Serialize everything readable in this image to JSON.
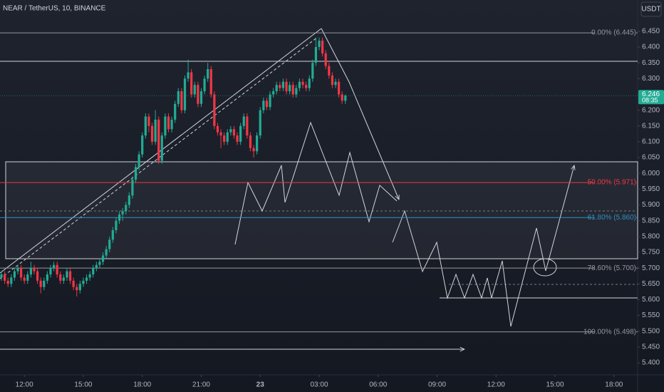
{
  "chart_data": {
    "type": "candlestick",
    "title": "NEAR / TetherUS, 10, BINANCE",
    "currency_button": "USDT",
    "up_color": "#22ab94",
    "down_color": "#f23645",
    "xlim": [
      0,
      194
    ],
    "xticks": [
      {
        "value": 7,
        "label": "12:00"
      },
      {
        "value": 25,
        "label": "15:00"
      },
      {
        "value": 43,
        "label": "18:00"
      },
      {
        "value": 61,
        "label": "21:00"
      },
      {
        "value": 79,
        "label": "23"
      },
      {
        "value": 97,
        "label": "03:00"
      },
      {
        "value": 115,
        "label": "06:00"
      },
      {
        "value": 133,
        "label": "09:00"
      },
      {
        "value": 151,
        "label": "12:00"
      },
      {
        "value": 169,
        "label": "15:00"
      },
      {
        "value": 187,
        "label": "18:00"
      }
    ],
    "ylim": [
      5.364,
      6.549
    ],
    "yticks": [
      {
        "value": 6.45,
        "label": "6.450"
      },
      {
        "value": 6.4,
        "label": "6.400"
      },
      {
        "value": 6.35,
        "label": "6.350"
      },
      {
        "value": 6.3,
        "label": "6.300"
      },
      {
        "value": 6.2,
        "label": "6.200"
      },
      {
        "value": 6.15,
        "label": "6.150"
      },
      {
        "value": 6.1,
        "label": "6.100"
      },
      {
        "value": 6.05,
        "label": "6.050"
      },
      {
        "value": 6.0,
        "label": "6.000"
      },
      {
        "value": 5.95,
        "label": "5.950"
      },
      {
        "value": 5.9,
        "label": "5.900"
      },
      {
        "value": 5.85,
        "label": "5.850"
      },
      {
        "value": 5.8,
        "label": "5.800"
      },
      {
        "value": 5.75,
        "label": "5.750"
      },
      {
        "value": 5.7,
        "label": "5.700"
      },
      {
        "value": 5.65,
        "label": "5.650"
      },
      {
        "value": 5.6,
        "label": "5.600"
      },
      {
        "value": 5.55,
        "label": "5.550"
      },
      {
        "value": 5.5,
        "label": "5.500"
      },
      {
        "value": 5.45,
        "label": "5.450"
      },
      {
        "value": 5.4,
        "label": "5.400"
      }
    ],
    "last_price": {
      "value": 6.246,
      "label": "6.246",
      "countdown": "08:35",
      "color": "#22ab94"
    },
    "fib_levels": [
      {
        "label": "0.00% (6.445)",
        "value": 6.445,
        "color": "#9598a1"
      },
      {
        "label": "50.00% (5.971)",
        "value": 5.971,
        "color": "#f23645"
      },
      {
        "label": "61.80% (5.860)",
        "value": 5.86,
        "color": "#2f8fc4"
      },
      {
        "label": "78.60% (5.700)",
        "value": 5.7,
        "color": "#9598a1"
      },
      {
        "label": "100.00% (5.498)",
        "value": 5.498,
        "color": "#9598a1"
      }
    ],
    "ohlc": [
      [
        5.67,
        5.69,
        5.66,
        5.68
      ],
      [
        5.68,
        5.69,
        5.65,
        5.66
      ],
      [
        5.66,
        5.67,
        5.64,
        5.65
      ],
      [
        5.65,
        5.68,
        5.64,
        5.67
      ],
      [
        5.67,
        5.7,
        5.66,
        5.69
      ],
      [
        5.69,
        5.71,
        5.68,
        5.7
      ],
      [
        5.7,
        5.71,
        5.66,
        5.67
      ],
      [
        5.67,
        5.68,
        5.65,
        5.66
      ],
      [
        5.66,
        5.69,
        5.65,
        5.68
      ],
      [
        5.68,
        5.72,
        5.67,
        5.7
      ],
      [
        5.7,
        5.71,
        5.68,
        5.69
      ],
      [
        5.69,
        5.7,
        5.65,
        5.66
      ],
      [
        5.66,
        5.67,
        5.62,
        5.64
      ],
      [
        5.64,
        5.67,
        5.63,
        5.66
      ],
      [
        5.66,
        5.69,
        5.65,
        5.68
      ],
      [
        5.68,
        5.71,
        5.67,
        5.7
      ],
      [
        5.7,
        5.72,
        5.69,
        5.71
      ],
      [
        5.71,
        5.72,
        5.67,
        5.68
      ],
      [
        5.68,
        5.69,
        5.65,
        5.66
      ],
      [
        5.66,
        5.68,
        5.65,
        5.67
      ],
      [
        5.67,
        5.7,
        5.66,
        5.69
      ],
      [
        5.69,
        5.7,
        5.65,
        5.66
      ],
      [
        5.66,
        5.67,
        5.63,
        5.64
      ],
      [
        5.64,
        5.65,
        5.61,
        5.63
      ],
      [
        5.63,
        5.66,
        5.62,
        5.65
      ],
      [
        5.65,
        5.67,
        5.64,
        5.66
      ],
      [
        5.66,
        5.68,
        5.65,
        5.67
      ],
      [
        5.67,
        5.69,
        5.66,
        5.68
      ],
      [
        5.68,
        5.71,
        5.67,
        5.7
      ],
      [
        5.7,
        5.72,
        5.69,
        5.71
      ],
      [
        5.71,
        5.73,
        5.7,
        5.72
      ],
      [
        5.72,
        5.75,
        5.71,
        5.74
      ],
      [
        5.74,
        5.77,
        5.73,
        5.76
      ],
      [
        5.76,
        5.8,
        5.75,
        5.79
      ],
      [
        5.79,
        5.83,
        5.78,
        5.82
      ],
      [
        5.82,
        5.86,
        5.81,
        5.85
      ],
      [
        5.85,
        5.88,
        5.84,
        5.87
      ],
      [
        5.87,
        5.89,
        5.85,
        5.88
      ],
      [
        5.88,
        5.91,
        5.87,
        5.9
      ],
      [
        5.9,
        5.94,
        5.89,
        5.93
      ],
      [
        5.93,
        5.99,
        5.92,
        5.98
      ],
      [
        5.98,
        6.03,
        5.97,
        6.02
      ],
      [
        6.02,
        6.07,
        6.01,
        6.06
      ],
      [
        6.06,
        6.13,
        6.05,
        6.12
      ],
      [
        6.12,
        6.19,
        6.11,
        6.18
      ],
      [
        6.18,
        6.19,
        6.13,
        6.15
      ],
      [
        6.15,
        6.16,
        6.09,
        6.1
      ],
      [
        6.1,
        6.2,
        6.09,
        6.17
      ],
      [
        6.17,
        6.18,
        6.03,
        6.04
      ],
      [
        6.04,
        6.13,
        6.03,
        6.12
      ],
      [
        6.12,
        6.19,
        6.11,
        6.18
      ],
      [
        6.18,
        6.19,
        6.13,
        6.14
      ],
      [
        6.14,
        6.18,
        6.13,
        6.17
      ],
      [
        6.17,
        6.23,
        6.16,
        6.22
      ],
      [
        6.22,
        6.27,
        6.21,
        6.26
      ],
      [
        6.26,
        6.27,
        6.19,
        6.2
      ],
      [
        6.2,
        6.31,
        6.19,
        6.3
      ],
      [
        6.3,
        6.36,
        6.29,
        6.32
      ],
      [
        6.32,
        6.33,
        6.24,
        6.25
      ],
      [
        6.25,
        6.29,
        6.24,
        6.28
      ],
      [
        6.28,
        6.29,
        6.21,
        6.22
      ],
      [
        6.22,
        6.27,
        6.21,
        6.26
      ],
      [
        6.26,
        6.31,
        6.25,
        6.3
      ],
      [
        6.3,
        6.35,
        6.29,
        6.33
      ],
      [
        6.33,
        6.34,
        6.24,
        6.25
      ],
      [
        6.25,
        6.26,
        6.14,
        6.15
      ],
      [
        6.15,
        6.16,
        6.12,
        6.13
      ],
      [
        6.13,
        6.14,
        6.08,
        6.12
      ],
      [
        6.12,
        6.13,
        6.09,
        6.1
      ],
      [
        6.1,
        6.14,
        6.09,
        6.13
      ],
      [
        6.13,
        6.15,
        6.12,
        6.14
      ],
      [
        6.14,
        6.15,
        6.11,
        6.12
      ],
      [
        6.12,
        6.13,
        6.09,
        6.1
      ],
      [
        6.1,
        6.16,
        6.09,
        6.15
      ],
      [
        6.15,
        6.19,
        6.14,
        6.18
      ],
      [
        6.18,
        6.19,
        6.11,
        6.12
      ],
      [
        6.12,
        6.13,
        6.07,
        6.08
      ],
      [
        6.08,
        6.09,
        6.05,
        6.07
      ],
      [
        6.07,
        6.13,
        6.06,
        6.12
      ],
      [
        6.12,
        6.21,
        6.11,
        6.2
      ],
      [
        6.2,
        6.24,
        6.19,
        6.23
      ],
      [
        6.23,
        6.24,
        6.2,
        6.21
      ],
      [
        6.21,
        6.26,
        6.2,
        6.25
      ],
      [
        6.25,
        6.27,
        6.24,
        6.26
      ],
      [
        6.26,
        6.29,
        6.25,
        6.28
      ],
      [
        6.28,
        6.29,
        6.26,
        6.27
      ],
      [
        6.27,
        6.3,
        6.26,
        6.29
      ],
      [
        6.29,
        6.3,
        6.25,
        6.26
      ],
      [
        6.26,
        6.29,
        6.25,
        6.28
      ],
      [
        6.28,
        6.29,
        6.24,
        6.25
      ],
      [
        6.25,
        6.28,
        6.24,
        6.27
      ],
      [
        6.27,
        6.3,
        6.26,
        6.29
      ],
      [
        6.29,
        6.3,
        6.27,
        6.28
      ],
      [
        6.28,
        6.29,
        6.26,
        6.27
      ],
      [
        6.27,
        6.31,
        6.26,
        6.3
      ],
      [
        6.3,
        6.36,
        6.29,
        6.35
      ],
      [
        6.35,
        6.43,
        6.34,
        6.4
      ],
      [
        6.4,
        6.43,
        6.39,
        6.42
      ],
      [
        6.42,
        6.43,
        6.37,
        6.38
      ],
      [
        6.38,
        6.39,
        6.33,
        6.34
      ],
      [
        6.34,
        6.35,
        6.3,
        6.31
      ],
      [
        6.31,
        6.32,
        6.27,
        6.28
      ],
      [
        6.28,
        6.3,
        6.27,
        6.29
      ],
      [
        6.29,
        6.3,
        6.24,
        6.25
      ],
      [
        6.25,
        6.26,
        6.22,
        6.23
      ],
      [
        6.23,
        6.25,
        6.22,
        6.246
      ]
    ]
  }
}
